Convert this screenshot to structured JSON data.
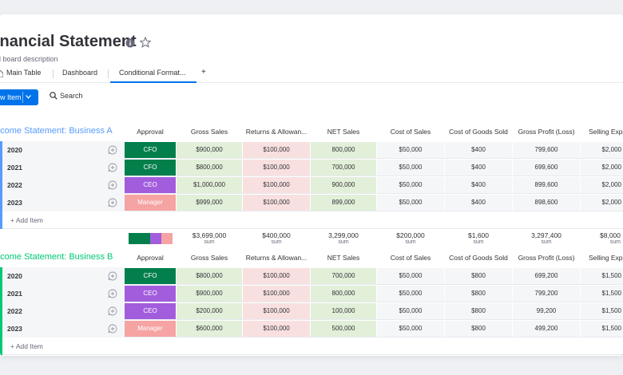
{
  "board": {
    "title": "inancial Statement",
    "description": "d board description"
  },
  "tabs": [
    {
      "label": "Main Table"
    },
    {
      "label": "Dashboard"
    },
    {
      "label": "Conditional Format..."
    },
    {
      "label": "+"
    }
  ],
  "toolbar": {
    "new_item_label": "w Item",
    "search_label": "Search"
  },
  "columns": [
    "Approval",
    "Gross Sales",
    "Returns & Allowan...",
    "NET Sales",
    "Cost of Sales",
    "Cost of Goods Sold",
    "Gross Profit (Loss)",
    "Selling Expe"
  ],
  "status_colors": {
    "CFO": "#037f4c",
    "CEO": "#a25ddc",
    "Manager": "#f5a3a3"
  },
  "groups": [
    {
      "title": "ncome Statement: Business A",
      "color": "#579bfc",
      "add_item_label": "+ Add Item",
      "rows": [
        {
          "year": "2020",
          "approval": "CFO",
          "gross_sales": "$900,000",
          "returns": "$100,000",
          "net_sales": "800,000",
          "cost_of_sales": "$50,000",
          "cogs": "$400",
          "gross_profit": "799,600",
          "selling": "$2,000"
        },
        {
          "year": "2021",
          "approval": "CFO",
          "gross_sales": "$800,000",
          "returns": "$100,000",
          "net_sales": "700,000",
          "cost_of_sales": "$50,000",
          "cogs": "$400",
          "gross_profit": "699,600",
          "selling": "$2,000"
        },
        {
          "year": "2022",
          "approval": "CEO",
          "gross_sales": "$1,000,000",
          "returns": "$100,000",
          "net_sales": "900,000",
          "cost_of_sales": "$50,000",
          "cogs": "$400",
          "gross_profit": "899,600",
          "selling": "$2,000"
        },
        {
          "year": "2023",
          "approval": "Manager",
          "gross_sales": "$999,000",
          "returns": "$100,000",
          "net_sales": "899,000",
          "cost_of_sales": "$50,000",
          "cogs": "$400",
          "gross_profit": "898,600",
          "selling": "$2,000"
        }
      ],
      "summary": {
        "approval_distribution": [
          {
            "status": "CFO",
            "fraction": 0.5
          },
          {
            "status": "CEO",
            "fraction": 0.25
          },
          {
            "status": "Manager",
            "fraction": 0.25
          }
        ],
        "gross_sales": "$3,699,000",
        "returns": "$400,000",
        "net_sales": "3,299,000",
        "cost_of_sales": "$200,000",
        "cogs": "$1,600",
        "gross_profit": "3,297,400",
        "selling": "$8,000",
        "sum_label": "sum"
      }
    },
    {
      "title": "ncome Statement: Business B",
      "color": "#00c875",
      "add_item_label": "+ Add Item",
      "rows": [
        {
          "year": "2020",
          "approval": "CFO",
          "gross_sales": "$800,000",
          "returns": "$100,000",
          "net_sales": "700,000",
          "cost_of_sales": "$50,000",
          "cogs": "$800",
          "gross_profit": "699,200",
          "selling": "$1,500"
        },
        {
          "year": "2021",
          "approval": "CEO",
          "gross_sales": "$900,000",
          "returns": "$100,000",
          "net_sales": "800,000",
          "cost_of_sales": "$50,000",
          "cogs": "$800",
          "gross_profit": "799,200",
          "selling": "$1,500"
        },
        {
          "year": "2022",
          "approval": "CEO",
          "gross_sales": "$200,000",
          "returns": "$100,000",
          "net_sales": "100,000",
          "cost_of_sales": "$50,000",
          "cogs": "$800",
          "gross_profit": "99,200",
          "selling": "$1,500"
        },
        {
          "year": "2023",
          "approval": "Manager",
          "gross_sales": "$600,000",
          "returns": "$100,000",
          "net_sales": "500,000",
          "cost_of_sales": "$50,000",
          "cogs": "$800",
          "gross_profit": "499,200",
          "selling": "$1,500"
        }
      ]
    }
  ]
}
